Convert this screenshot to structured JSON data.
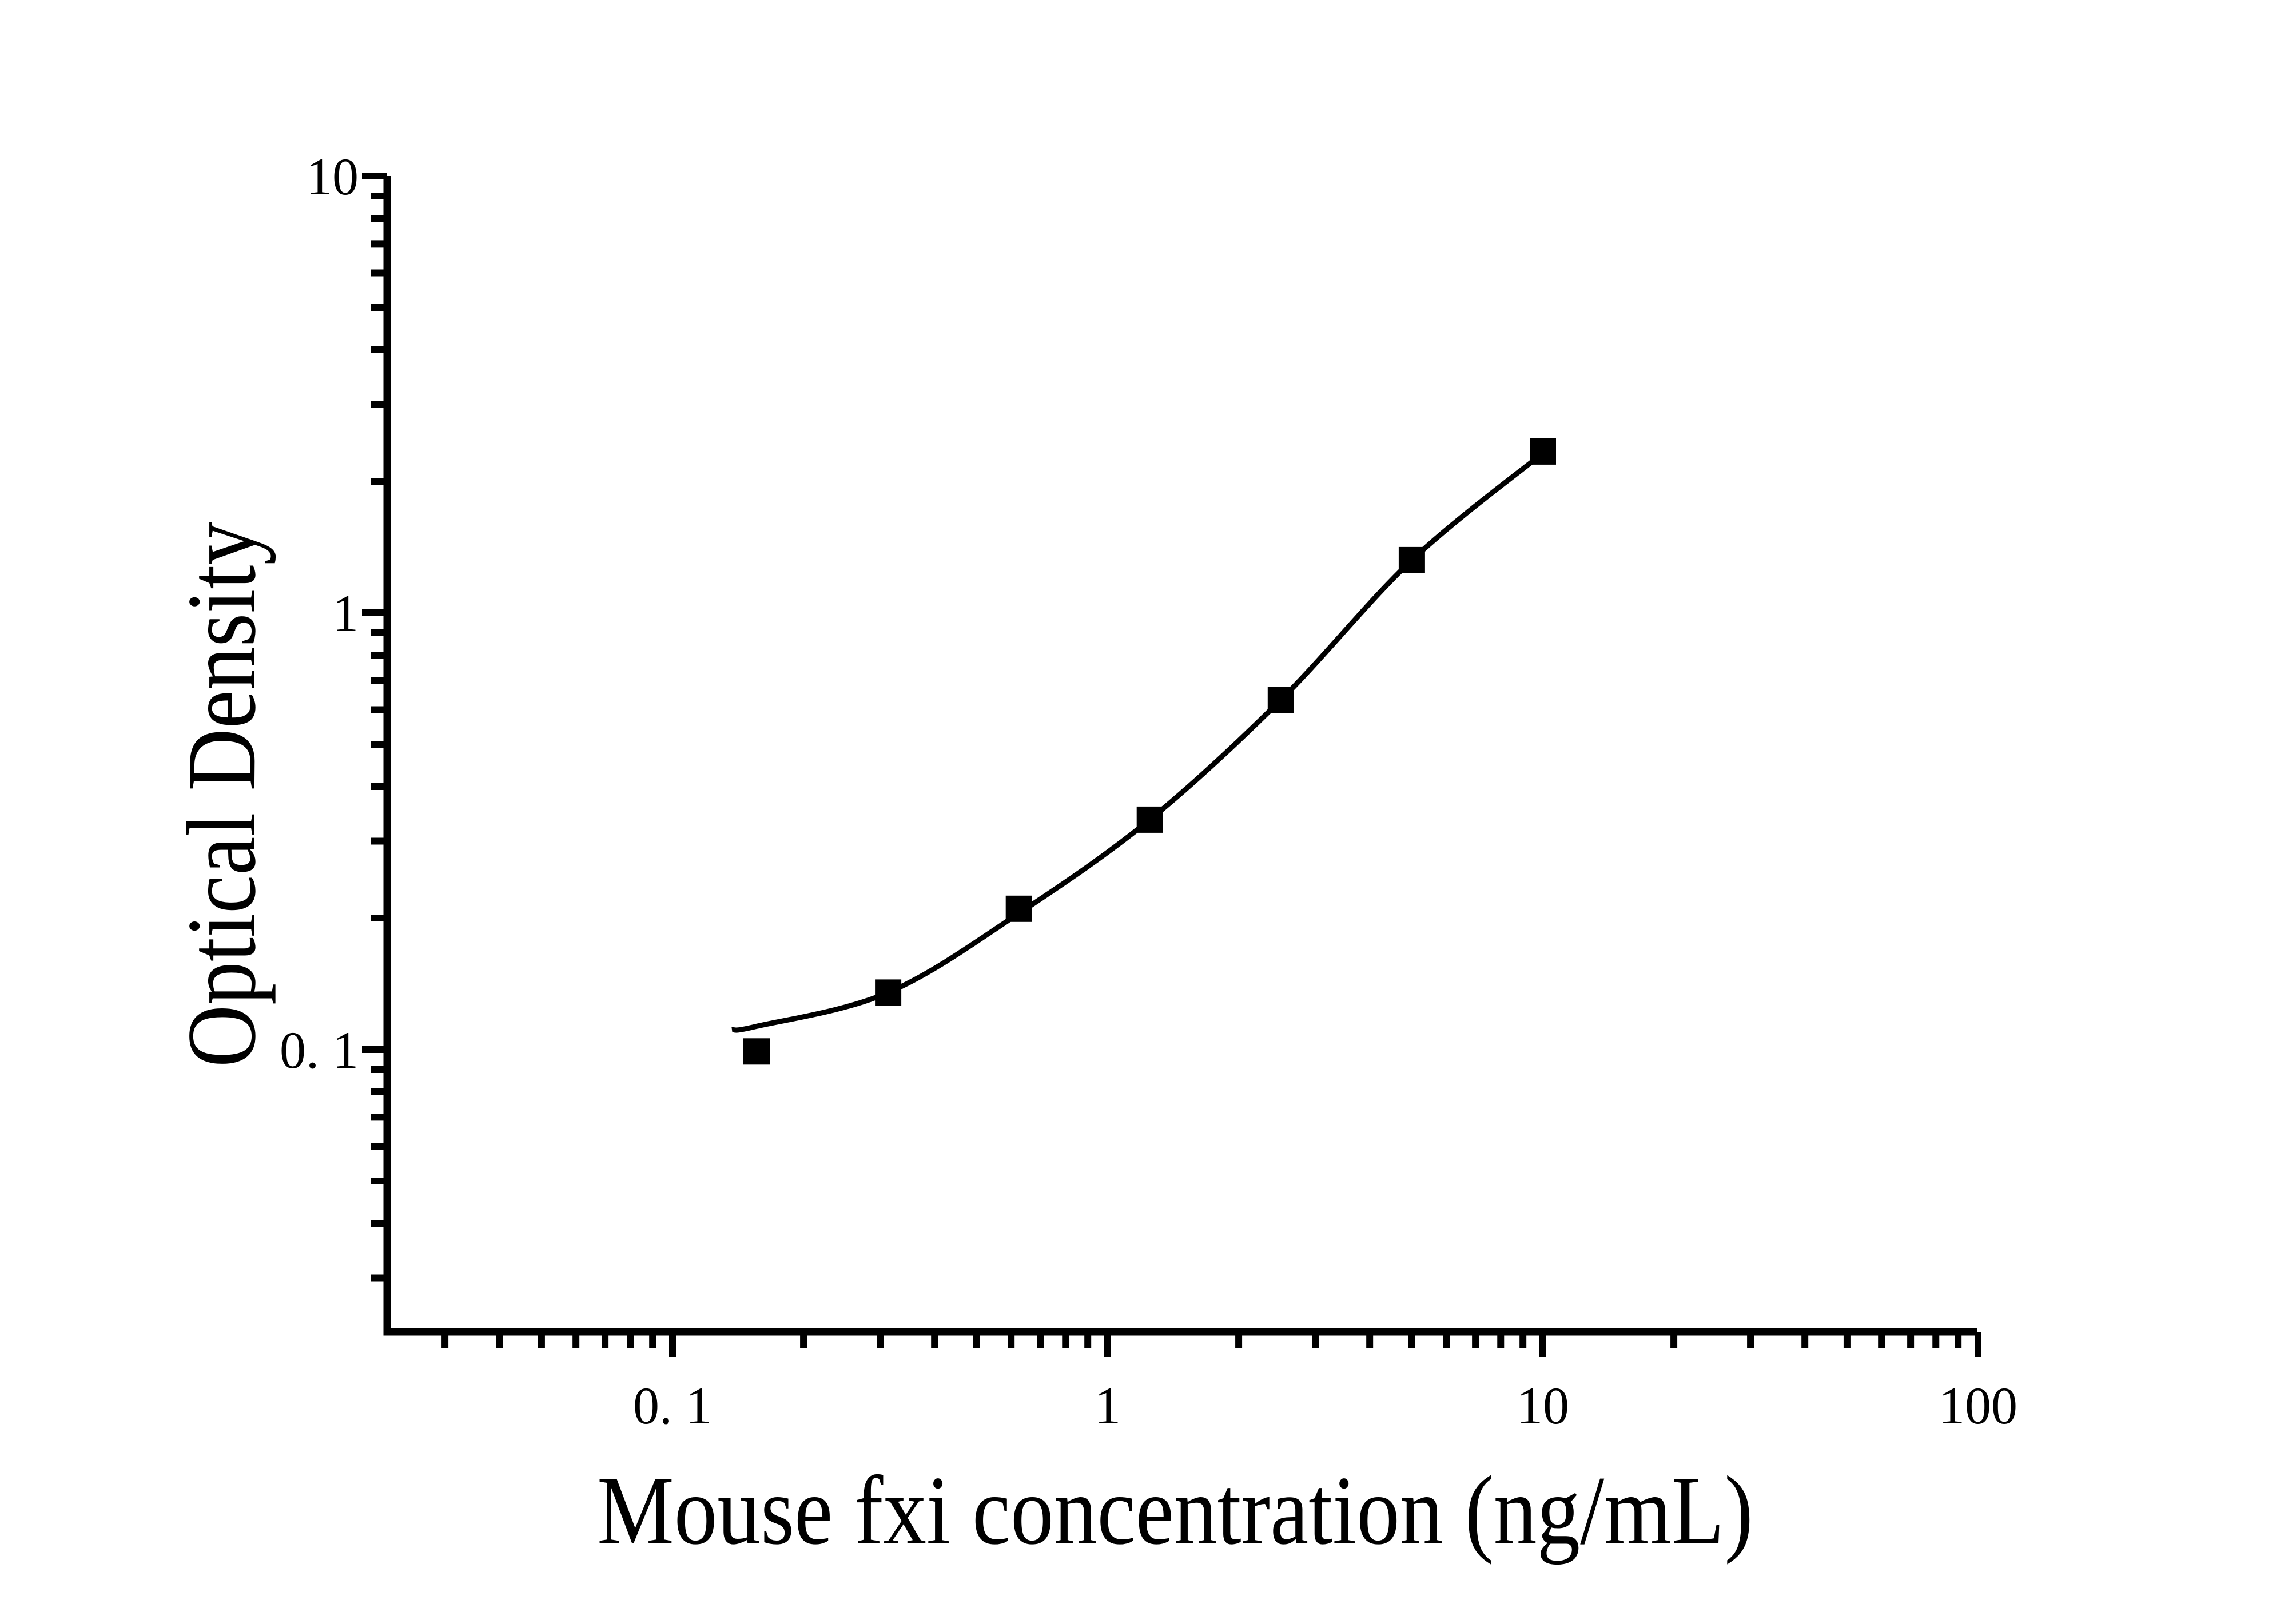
{
  "figure": {
    "background_color": "#ffffff",
    "ink_color": "#000000"
  },
  "chart_data": {
    "type": "scatter",
    "subtype": "log-log standard curve with fitted line",
    "title": "",
    "xlabel": "Mouse fxi concentration (ng/mL)",
    "ylabel": "Optical Density",
    "x_scale": "log",
    "y_scale": "log",
    "xlim": [
      0.022,
      100
    ],
    "ylim": [
      0.023,
      10
    ],
    "grid": false,
    "legend_position": "none",
    "x_major_ticks": [
      0.1,
      1,
      10,
      100
    ],
    "x_tick_labels": [
      "0. 1",
      "1",
      "10",
      "100"
    ],
    "y_major_ticks": [
      0.1,
      1,
      10
    ],
    "y_tick_labels": [
      "0. 1",
      "1",
      "10"
    ],
    "series": [
      {
        "name": "standard-points",
        "marker": "filled-square",
        "marker_color": "#000000",
        "x": [
          0.156,
          0.313,
          0.625,
          1.25,
          2.5,
          5,
          10
        ],
        "y": [
          0.099,
          0.135,
          0.21,
          0.336,
          0.632,
          1.32,
          2.34
        ]
      },
      {
        "name": "fitted-curve",
        "line_color": "#000000",
        "x": [
          0.137,
          0.156,
          0.313,
          0.625,
          1.25,
          2.5,
          5,
          10
        ],
        "y": [
          0.111,
          0.113,
          0.135,
          0.205,
          0.336,
          0.632,
          1.32,
          2.32
        ]
      }
    ]
  }
}
